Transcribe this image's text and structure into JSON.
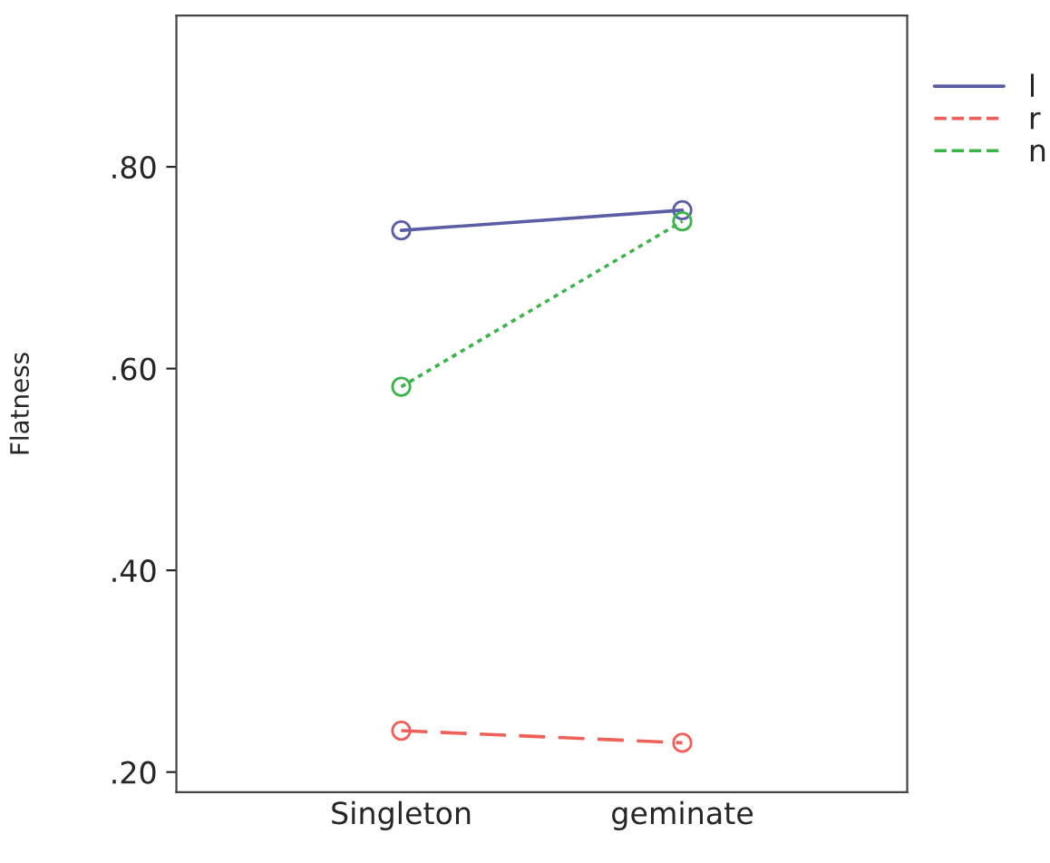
{
  "chart_data": {
    "type": "line",
    "ylabel": "Flatness",
    "categories": [
      "Singleton",
      "geminate"
    ],
    "series": [
      {
        "name": "l",
        "color": "#5b5ea6",
        "values": [
          0.737,
          0.757
        ],
        "line_style": "solid"
      },
      {
        "name": "r",
        "color": "#f0605a",
        "values": [
          0.241,
          0.229
        ],
        "line_style": "dashed"
      },
      {
        "name": "n",
        "color": "#3cb44b",
        "values": [
          0.582,
          0.746
        ],
        "line_style": "dotted"
      }
    ],
    "ylim": [
      0.18,
      0.95
    ],
    "yticks": [
      {
        "value": 0.2,
        "label": ".20"
      },
      {
        "value": 0.4,
        "label": ".40"
      },
      {
        "value": 0.6,
        "label": ".60"
      },
      {
        "value": 0.8,
        "label": ".80"
      }
    ],
    "marker": "circle",
    "legend": "top right",
    "grid": false
  }
}
